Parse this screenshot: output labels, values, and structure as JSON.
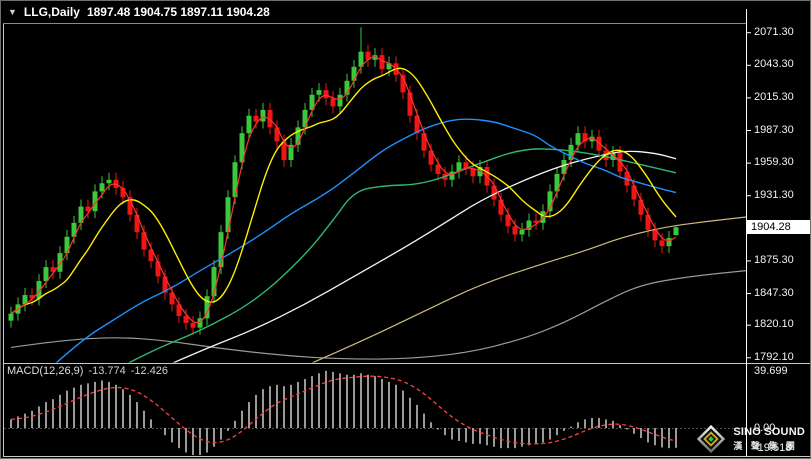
{
  "title": {
    "dropdown_icon": "▼",
    "symbol": "LLG,Daily",
    "ohlc": "1897.48 1904.75 1897.11 1904.28"
  },
  "price_axis": {
    "ticks": [
      "2071.30",
      "2043.30",
      "2015.30",
      "1987.30",
      "1959.30",
      "1931.30",
      "1875.30",
      "1847.30",
      "1820.10",
      "1792.10"
    ],
    "current_price": "1904.28"
  },
  "macd_panel": {
    "label": "MACD(12,26,9)",
    "main_value": "-13.774",
    "signal_value": "-12.426",
    "ticks": [
      "39.699",
      "0.00",
      "-19.518"
    ]
  },
  "watermark": {
    "brand": "SINO SOUND",
    "brand_cn": "漢 聲 集 團"
  },
  "colors": {
    "background": "#000000",
    "frame": "#C8C8C8",
    "axis_line": "#FFFFFF",
    "bull": "#3CC83C",
    "bear": "#F01616",
    "macd_histogram": "#C0C0C0",
    "macd_signal": "#FF4040",
    "price_tag_bg": "#FFFFFF",
    "price_tag_text": "#000000",
    "axis_text": "#F2F2F2"
  },
  "chart_data": {
    "type": "candlestick",
    "symbol": "LLG",
    "timeframe": "Daily",
    "price_range": {
      "top_tick": 2071.3,
      "bottom_tick": 1792.1
    },
    "candles": [
      [
        1824,
        1836,
        1818,
        1830
      ],
      [
        1830,
        1844,
        1824,
        1838
      ],
      [
        1838,
        1852,
        1832,
        1846
      ],
      [
        1846,
        1852,
        1837,
        1843
      ],
      [
        1843,
        1864,
        1837,
        1858
      ],
      [
        1858,
        1876,
        1852,
        1870
      ],
      [
        1870,
        1876,
        1860,
        1866
      ],
      [
        1866,
        1888,
        1860,
        1882
      ],
      [
        1882,
        1902,
        1876,
        1896
      ],
      [
        1896,
        1914,
        1890,
        1908
      ],
      [
        1908,
        1928,
        1902,
        1922
      ],
      [
        1922,
        1928,
        1912,
        1918
      ],
      [
        1918,
        1941,
        1912,
        1935
      ],
      [
        1935,
        1948,
        1929,
        1942
      ],
      [
        1942,
        1951,
        1936,
        1945
      ],
      [
        1945,
        1951,
        1932,
        1938
      ],
      [
        1938,
        1944,
        1924,
        1930
      ],
      [
        1930,
        1936,
        1909,
        1915
      ],
      [
        1915,
        1921,
        1894,
        1900
      ],
      [
        1900,
        1906,
        1879,
        1885
      ],
      [
        1885,
        1891,
        1869,
        1875
      ],
      [
        1875,
        1881,
        1856,
        1862
      ],
      [
        1862,
        1868,
        1842,
        1848
      ],
      [
        1848,
        1854,
        1832,
        1838
      ],
      [
        1838,
        1844,
        1822,
        1828
      ],
      [
        1828,
        1834,
        1816,
        1822
      ],
      [
        1822,
        1828,
        1812,
        1818
      ],
      [
        1818,
        1832,
        1812,
        1826
      ],
      [
        1826,
        1851,
        1820,
        1845
      ],
      [
        1845,
        1876,
        1839,
        1870
      ],
      [
        1870,
        1906,
        1864,
        1900
      ],
      [
        1900,
        1936,
        1894,
        1930
      ],
      [
        1930,
        1966,
        1924,
        1960
      ],
      [
        1960,
        1991,
        1954,
        1985
      ],
      [
        1985,
        2006,
        1979,
        2000
      ],
      [
        2000,
        2006,
        1989,
        1995
      ],
      [
        1995,
        2011,
        1989,
        2005
      ],
      [
        2005,
        2011,
        1984,
        1990
      ],
      [
        1990,
        1996,
        1972,
        1978
      ],
      [
        1978,
        1984,
        1956,
        1962
      ],
      [
        1962,
        1981,
        1956,
        1975
      ],
      [
        1975,
        1996,
        1969,
        1990
      ],
      [
        1990,
        2011,
        1984,
        2005
      ],
      [
        2005,
        2024,
        1999,
        2018
      ],
      [
        2018,
        2028,
        2012,
        2022
      ],
      [
        2022,
        2028,
        2009,
        2015
      ],
      [
        2015,
        2021,
        2002,
        2008
      ],
      [
        2008,
        2024,
        2002,
        2018
      ],
      [
        2018,
        2036,
        2012,
        2030
      ],
      [
        2030,
        2048,
        2024,
        2042
      ],
      [
        2042,
        2076,
        2036,
        2055
      ],
      [
        2055,
        2061,
        2042,
        2048
      ],
      [
        2048,
        2058,
        2042,
        2052
      ],
      [
        2052,
        2058,
        2034,
        2040
      ],
      [
        2040,
        2051,
        2034,
        2045
      ],
      [
        2045,
        2051,
        2029,
        2035
      ],
      [
        2035,
        2041,
        2014,
        2020
      ],
      [
        2020,
        2026,
        1994,
        2000
      ],
      [
        2000,
        2006,
        1979,
        1985
      ],
      [
        1985,
        1991,
        1964,
        1970
      ],
      [
        1970,
        1976,
        1952,
        1958
      ],
      [
        1958,
        1964,
        1944,
        1950
      ],
      [
        1950,
        1956,
        1939,
        1945
      ],
      [
        1945,
        1958,
        1939,
        1952
      ],
      [
        1952,
        1966,
        1946,
        1960
      ],
      [
        1960,
        1966,
        1949,
        1955
      ],
      [
        1955,
        1961,
        1942,
        1948
      ],
      [
        1948,
        1962,
        1942,
        1956
      ],
      [
        1956,
        1962,
        1934,
        1940
      ],
      [
        1940,
        1946,
        1922,
        1928
      ],
      [
        1928,
        1934,
        1909,
        1915
      ],
      [
        1915,
        1921,
        1899,
        1905
      ],
      [
        1905,
        1911,
        1892,
        1898
      ],
      [
        1898,
        1908,
        1892,
        1902
      ],
      [
        1902,
        1916,
        1896,
        1910
      ],
      [
        1910,
        1916,
        1902,
        1908
      ],
      [
        1908,
        1924,
        1902,
        1918
      ],
      [
        1918,
        1941,
        1912,
        1935
      ],
      [
        1935,
        1956,
        1929,
        1950
      ],
      [
        1950,
        1968,
        1944,
        1962
      ],
      [
        1962,
        1981,
        1956,
        1975
      ],
      [
        1975,
        1991,
        1969,
        1985
      ],
      [
        1985,
        1991,
        1972,
        1978
      ],
      [
        1978,
        1988,
        1972,
        1982
      ],
      [
        1982,
        1988,
        1964,
        1970
      ],
      [
        1970,
        1976,
        1956,
        1962
      ],
      [
        1962,
        1974,
        1956,
        1968
      ],
      [
        1968,
        1974,
        1946,
        1952
      ],
      [
        1952,
        1958,
        1934,
        1940
      ],
      [
        1940,
        1946,
        1922,
        1928
      ],
      [
        1928,
        1934,
        1909,
        1915
      ],
      [
        1915,
        1921,
        1896,
        1902
      ],
      [
        1902,
        1908,
        1887,
        1893
      ],
      [
        1893,
        1899,
        1882,
        1888
      ],
      [
        1888,
        1901,
        1882,
        1895
      ],
      [
        1897.48,
        1904.75,
        1897.11,
        1904.28
      ]
    ],
    "moving_averages": [
      {
        "name": "ma-fast-red",
        "type": "sma",
        "period": 3,
        "color": "#FF3232",
        "width": 1.2
      },
      {
        "name": "ma-medium-yellow",
        "type": "sma",
        "period": 9,
        "color": "#FFF000",
        "width": 1.4
      }
    ],
    "overlays": [
      {
        "name": "ma-silver",
        "color": "#9A9A9A",
        "width": 1.2,
        "points": [
          [
            0,
            1801
          ],
          [
            7,
            1807
          ],
          [
            15,
            1810
          ],
          [
            22,
            1807
          ],
          [
            30,
            1800
          ],
          [
            39,
            1794
          ],
          [
            47,
            1791
          ],
          [
            56,
            1791
          ],
          [
            65,
            1796
          ],
          [
            73,
            1808
          ],
          [
            79,
            1822
          ],
          [
            85,
            1841
          ],
          [
            90,
            1855
          ],
          [
            97,
            1862
          ],
          [
            105,
            1867
          ]
        ]
      },
      {
        "name": "trendline-tan",
        "color": "#CDB980",
        "width": 1.2,
        "points": [
          [
            42,
            1785
          ],
          [
            50,
            1806
          ],
          [
            59,
            1832
          ],
          [
            67,
            1855
          ],
          [
            76,
            1873
          ],
          [
            82,
            1884
          ],
          [
            87,
            1895
          ],
          [
            93,
            1904
          ],
          [
            99,
            1909
          ],
          [
            105,
            1913
          ]
        ]
      },
      {
        "name": "ma-white",
        "color": "#F5F5F5",
        "width": 1.3,
        "points": [
          [
            21,
            1782
          ],
          [
            27,
            1798
          ],
          [
            35,
            1817
          ],
          [
            42,
            1838
          ],
          [
            49,
            1862
          ],
          [
            56,
            1886
          ],
          [
            62,
            1908
          ],
          [
            67,
            1927
          ],
          [
            73,
            1944
          ],
          [
            79,
            1958
          ],
          [
            85,
            1967
          ],
          [
            88,
            1970
          ],
          [
            92,
            1968
          ],
          [
            95,
            1963
          ]
        ]
      },
      {
        "name": "ma-green",
        "color": "#2EB872",
        "width": 1.4,
        "points": [
          [
            15,
            1782
          ],
          [
            20,
            1798
          ],
          [
            27,
            1815
          ],
          [
            35,
            1841
          ],
          [
            42,
            1880
          ],
          [
            46,
            1910
          ],
          [
            49,
            1935
          ],
          [
            53,
            1940
          ],
          [
            59,
            1941
          ],
          [
            66,
            1957
          ],
          [
            73,
            1972
          ],
          [
            79,
            1971
          ],
          [
            85,
            1965
          ],
          [
            90,
            1958
          ],
          [
            95,
            1951
          ]
        ]
      },
      {
        "name": "ma-blue",
        "color": "#1E90FF",
        "width": 1.4,
        "points": [
          [
            5,
            1780
          ],
          [
            10,
            1807
          ],
          [
            15,
            1826
          ],
          [
            19,
            1841
          ],
          [
            23,
            1852
          ],
          [
            27,
            1867
          ],
          [
            32,
            1884
          ],
          [
            36,
            1899
          ],
          [
            40,
            1916
          ],
          [
            45,
            1933
          ],
          [
            49,
            1951
          ],
          [
            53,
            1970
          ],
          [
            56,
            1980
          ],
          [
            59,
            1989
          ],
          [
            62,
            1995
          ],
          [
            64,
            1997
          ],
          [
            66,
            1997
          ],
          [
            69,
            1995
          ],
          [
            72,
            1989
          ],
          [
            75,
            1983
          ],
          [
            77,
            1974
          ],
          [
            80,
            1965
          ],
          [
            82,
            1959
          ],
          [
            85,
            1953
          ],
          [
            87,
            1947
          ],
          [
            90,
            1942
          ],
          [
            93,
            1937
          ],
          [
            95,
            1934
          ]
        ]
      }
    ],
    "macd": {
      "params": "12,26,9",
      "range": {
        "max": 39.699,
        "min": -19.518
      },
      "signal_ema_period": 9,
      "histogram": [
        6,
        8,
        10,
        12,
        15,
        18,
        20,
        23,
        26,
        28,
        30,
        31,
        32,
        33,
        32,
        30,
        27,
        23,
        18,
        12,
        6,
        0,
        -5,
        -10,
        -14,
        -17,
        -19,
        -19.5,
        -17,
        -13,
        -8,
        -2,
        5,
        12,
        18,
        23,
        27,
        29,
        30,
        29,
        30,
        32,
        34,
        36,
        38,
        39.7,
        39,
        38,
        37,
        37,
        38,
        37,
        36,
        34,
        32,
        30,
        26,
        21,
        16,
        10,
        4,
        -1,
        -5,
        -8,
        -9,
        -10,
        -11,
        -11,
        -12,
        -13,
        -14,
        -14,
        -14,
        -13,
        -12,
        -11,
        -10,
        -8,
        -5,
        -2,
        1,
        4,
        6,
        7,
        7,
        6,
        5,
        2,
        -1,
        -4,
        -7,
        -10,
        -12,
        -13.5,
        -14,
        -13.774
      ]
    }
  }
}
